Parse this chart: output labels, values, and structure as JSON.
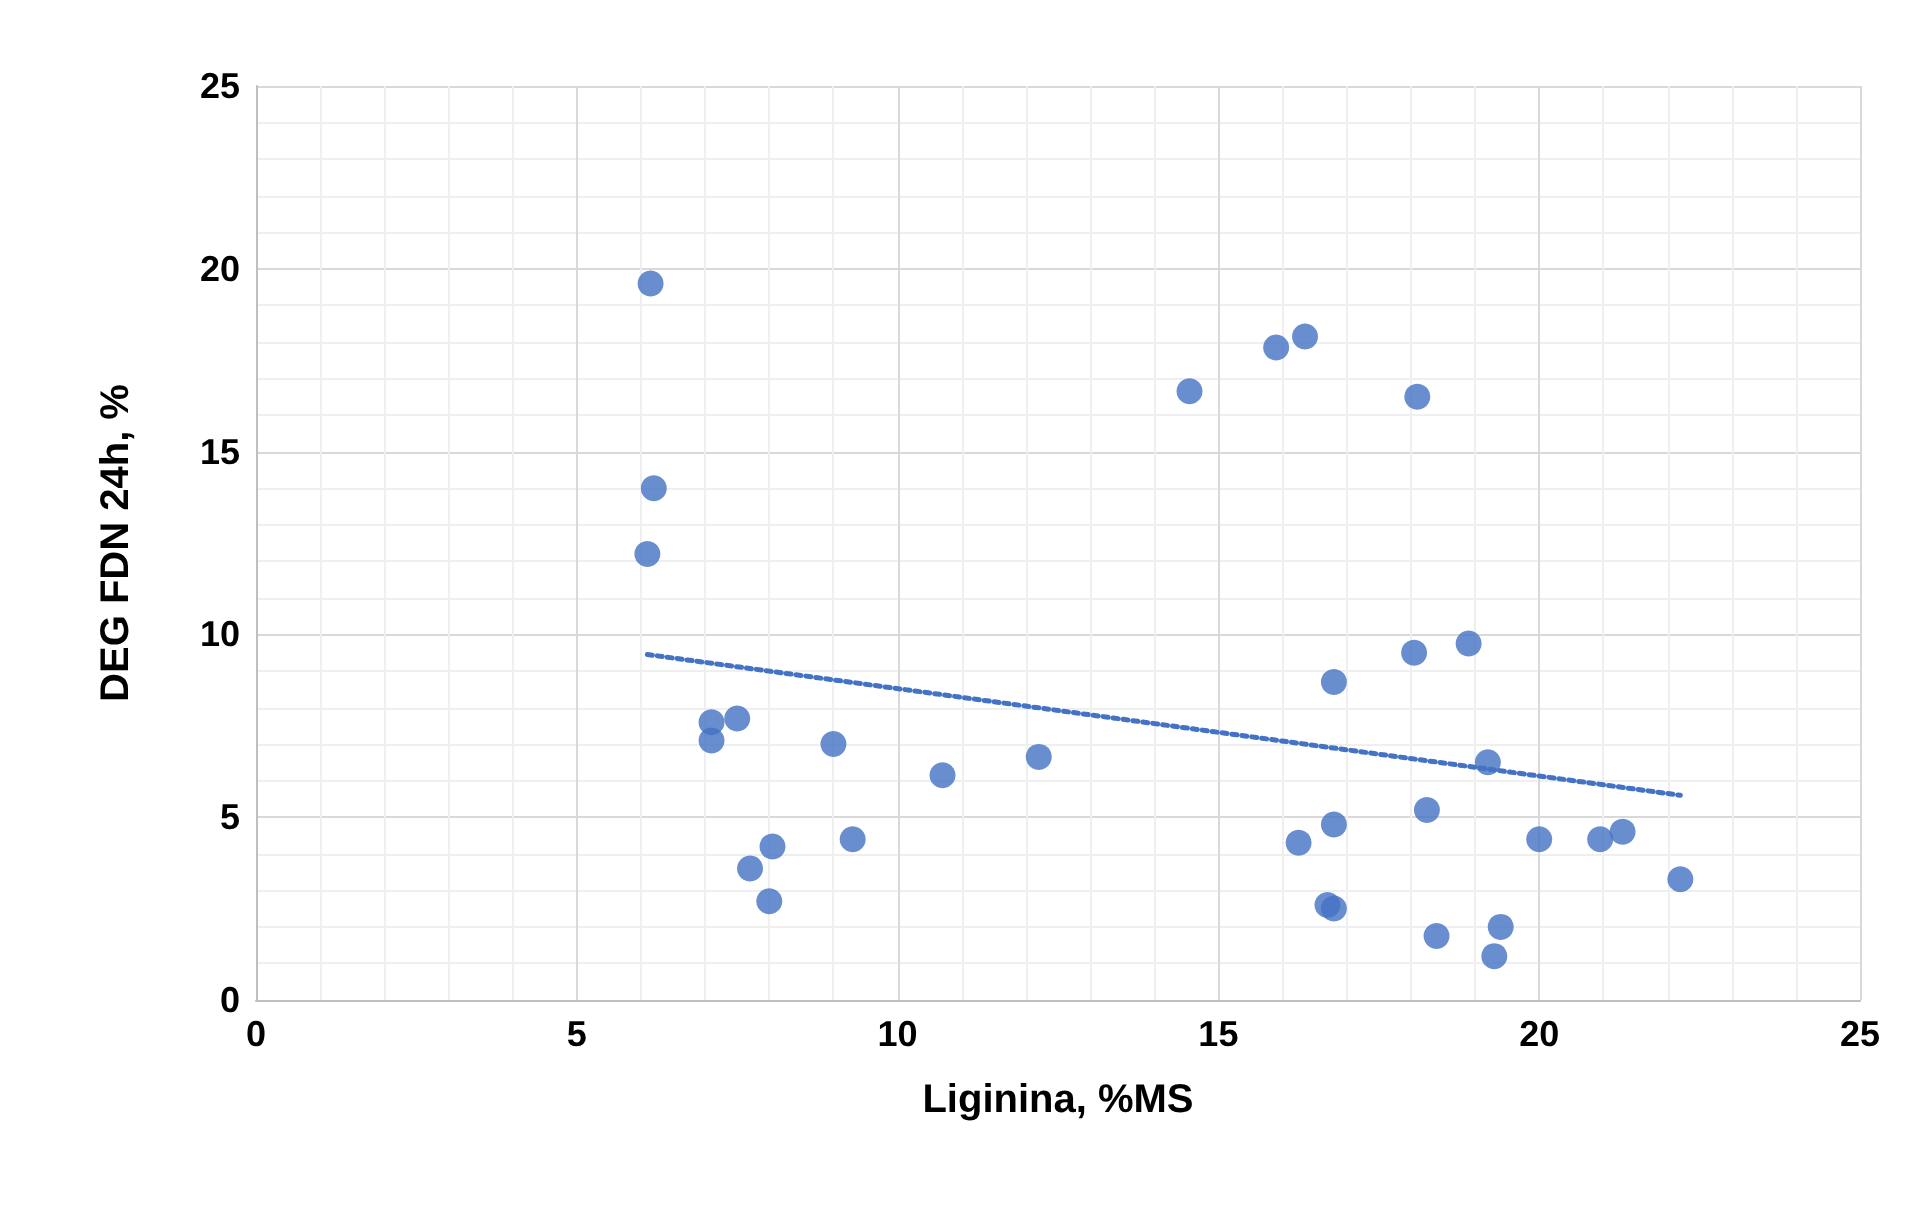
{
  "chart_data": {
    "type": "scatter",
    "xlabel": "Liginina, %MS",
    "ylabel": "DEG FDN 24h, %",
    "xlim": [
      0,
      25
    ],
    "xticks": [
      0,
      5,
      10,
      15,
      20,
      25
    ],
    "ylim": [
      0,
      25
    ],
    "yticks": [
      0,
      5,
      10,
      15,
      20,
      25
    ],
    "grid": true,
    "marker": "circle",
    "series": [
      {
        "color": "#4472c4",
        "x": [
          6.15,
          6.2,
          6.1,
          7.1,
          7.1,
          7.5,
          7.7,
          8.05,
          8.0,
          9.0,
          9.3,
          10.7,
          12.2,
          14.55,
          15.9,
          16.35,
          18.1,
          16.8,
          18.05,
          18.9,
          19.2,
          16.25,
          16.8,
          18.25,
          16.7,
          16.8,
          18.4,
          19.4,
          19.3,
          20.0,
          20.95,
          21.3,
          22.2
        ],
        "values": [
          19.6,
          14.0,
          12.2,
          7.6,
          7.1,
          7.7,
          3.6,
          4.2,
          2.7,
          7.0,
          4.4,
          6.15,
          6.65,
          16.65,
          17.85,
          18.15,
          16.5,
          8.7,
          9.5,
          9.75,
          6.5,
          4.3,
          4.8,
          5.2,
          2.6,
          2.5,
          1.75,
          2.0,
          1.2,
          4.4,
          4.4,
          4.6,
          3.3
        ]
      },
      {
        "type": "line",
        "color": "#4472c4",
        "line_style": "dotted",
        "marker": "none",
        "x": [
          6.1,
          22.2
        ],
        "values": [
          9.45,
          5.6
        ]
      }
    ]
  }
}
